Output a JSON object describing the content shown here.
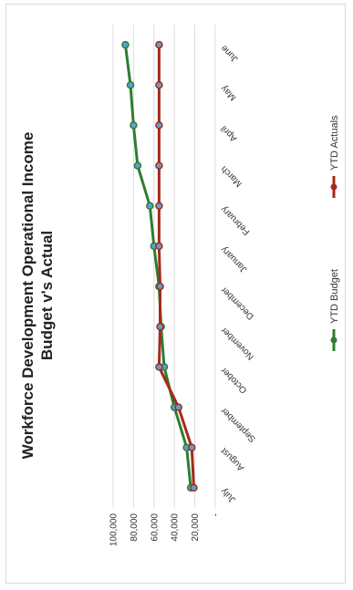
{
  "chart_data": {
    "type": "line",
    "title": "Workforce Development Operational Income",
    "subtitle": "Budget v's Actual",
    "categories": [
      "July",
      "August",
      "September",
      "October",
      "November",
      "December",
      "January",
      "February",
      "March",
      "April",
      "May",
      "June"
    ],
    "series": [
      {
        "name": "YTD Budget",
        "color": "#2e7d32",
        "values": [
          24000,
          28000,
          40000,
          50000,
          53000,
          55000,
          60000,
          64000,
          76000,
          80000,
          83000,
          88000
        ]
      },
      {
        "name": "YTD Actuals",
        "color": "#a52a1a",
        "values": [
          21000,
          23000,
          36000,
          55000,
          54000,
          54000,
          55000,
          55000,
          55000,
          55000,
          55000,
          55000
        ]
      }
    ],
    "yticks": [
      "100,000",
      "80,000",
      "60,000",
      "40,000",
      "20,000",
      "-"
    ],
    "ylim": [
      0,
      100000
    ],
    "grid": true,
    "legend": "bottom",
    "orientation": "rotated-90"
  }
}
